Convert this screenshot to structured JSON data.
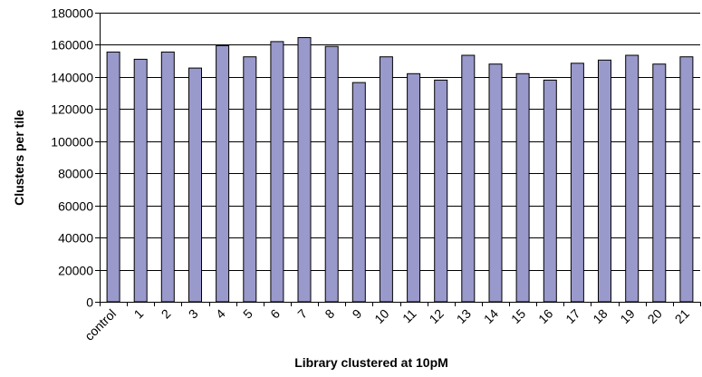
{
  "chart_data": {
    "type": "bar",
    "title": "",
    "xlabel": "Library clustered at 10pM",
    "ylabel": "Clusters per tile",
    "categories": [
      "control",
      "1",
      "2",
      "3",
      "4",
      "5",
      "6",
      "7",
      "8",
      "9",
      "10",
      "11",
      "12",
      "13",
      "14",
      "15",
      "16",
      "17",
      "18",
      "19",
      "20",
      "21"
    ],
    "values": [
      155500,
      151000,
      155500,
      145500,
      159500,
      152500,
      162000,
      164500,
      159000,
      136500,
      152500,
      142000,
      138000,
      153500,
      148000,
      142000,
      138000,
      148500,
      150500,
      153500,
      148000,
      152500
    ],
    "ylim": [
      0,
      180000
    ],
    "yticks": [
      0,
      20000,
      40000,
      60000,
      80000,
      100000,
      120000,
      140000,
      160000,
      180000
    ],
    "ytick_labels": [
      "0",
      "20000",
      "40000",
      "60000",
      "80000",
      "100000",
      "120000",
      "140000",
      "160000",
      "180000"
    ],
    "grid": true,
    "legend": "none",
    "colors": {
      "bar_fill": "#9999cc",
      "bar_stroke": "#000000",
      "grid": "#000000"
    }
  }
}
